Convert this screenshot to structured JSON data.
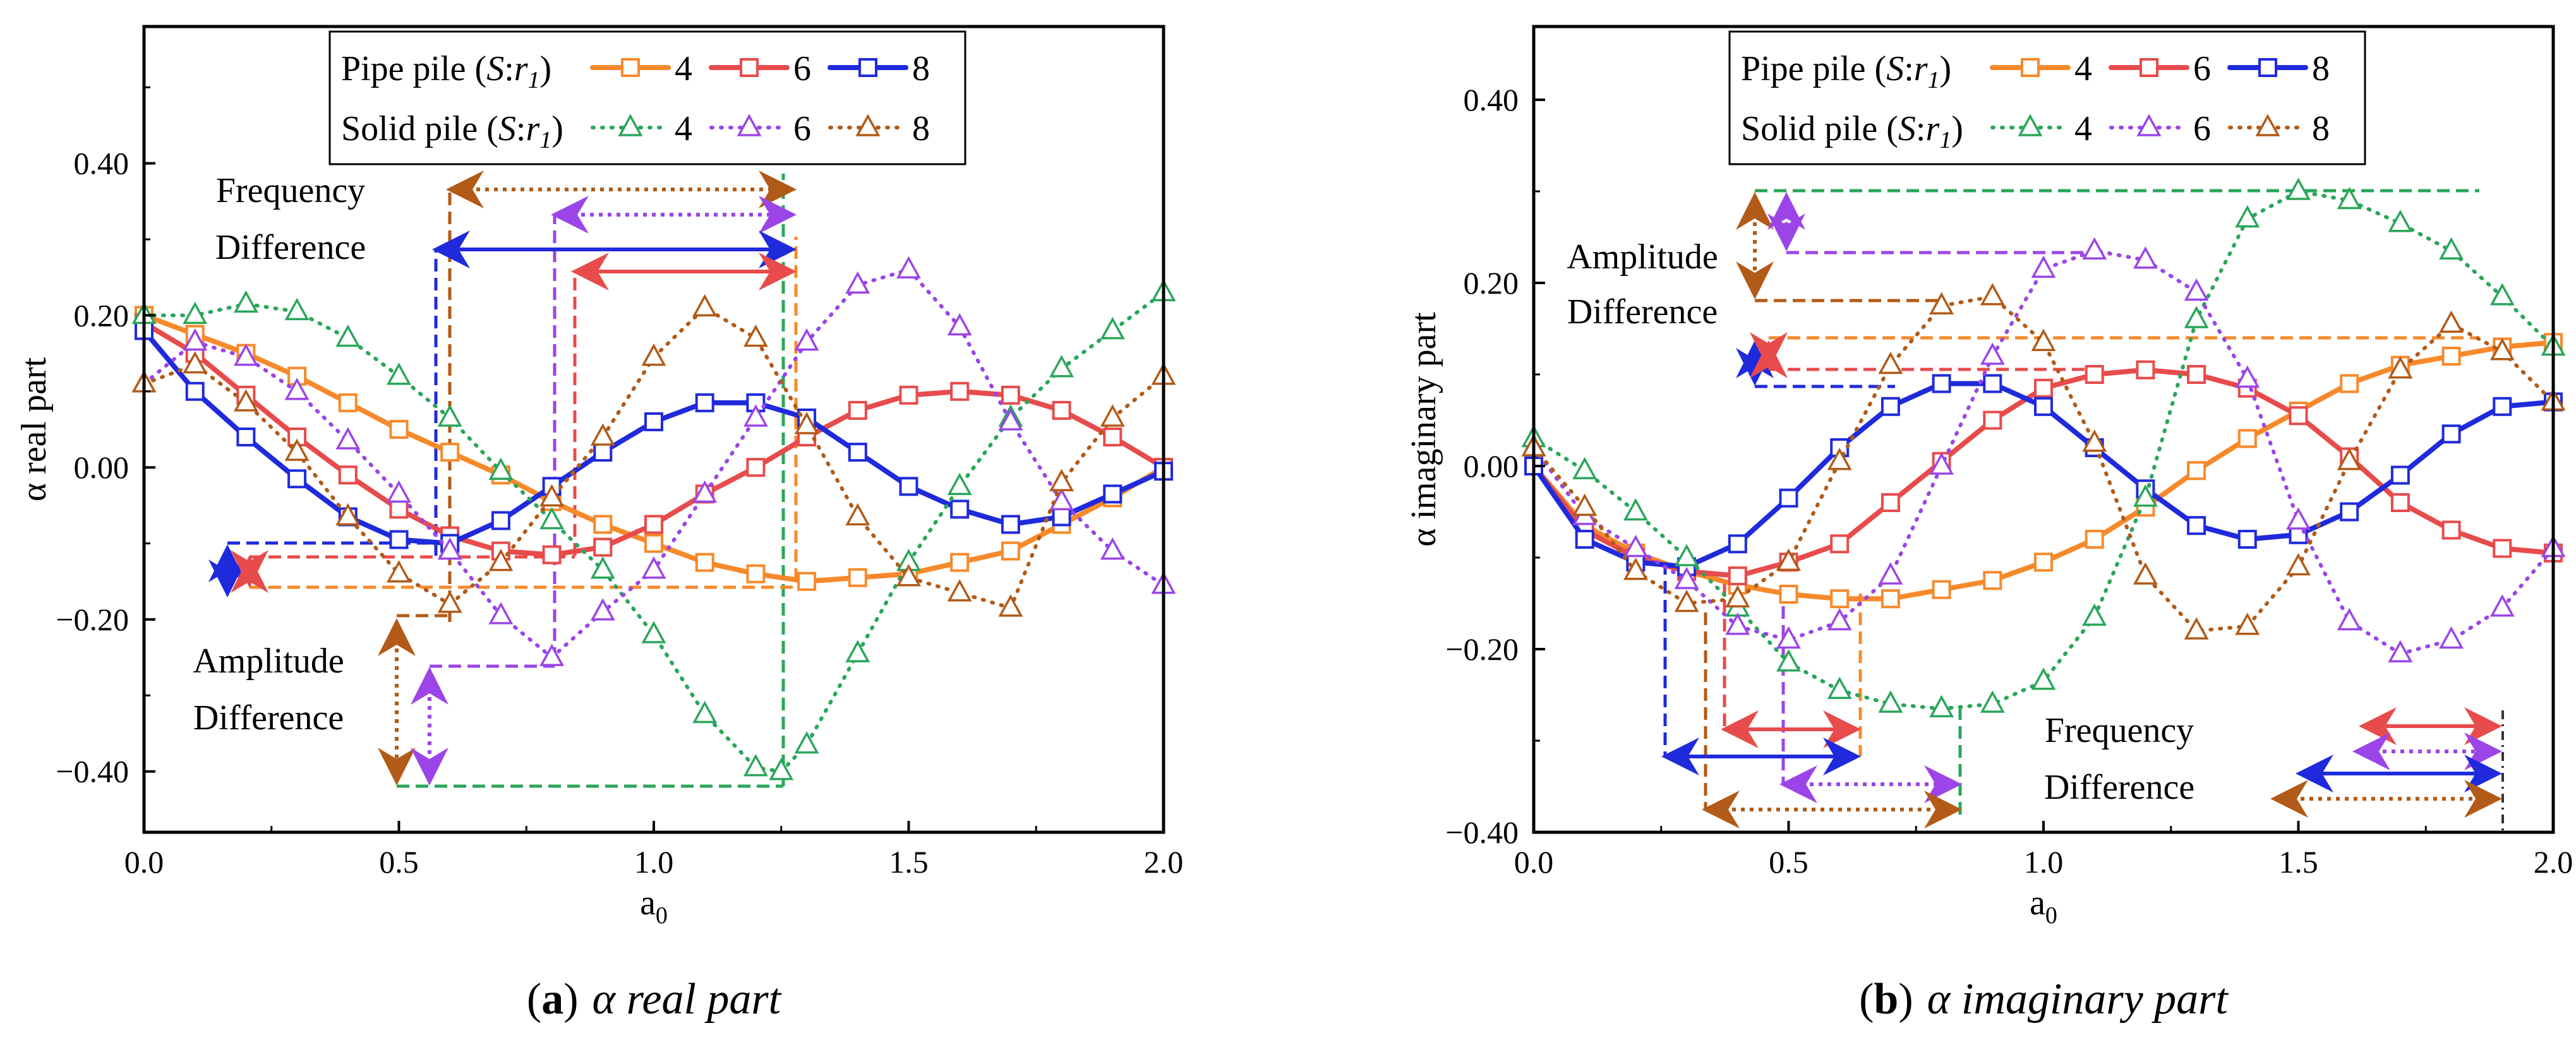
{
  "figure": {
    "legend": {
      "pipe_label": "Pipe  pile (",
      "solid_label": "Solid pile (",
      "ratio_S": "S",
      "ratio_colon": ":",
      "ratio_r": "r",
      "ratio_sub": "1",
      "ratio_close": ")",
      "entries": [
        "4",
        "6",
        "8"
      ]
    },
    "colors": {
      "pipe_4": "#f7892a",
      "pipe_6": "#e84b4b",
      "pipe_8": "#1f2adc",
      "solid_4": "#2aa65a",
      "solid_6": "#9b45e8",
      "solid_8": "#b25a17"
    },
    "annotations": {
      "freq_1": "Frequency",
      "freq_2": "Difference",
      "amp_1": "Amplitude",
      "amp_2": "Difference"
    }
  },
  "chart_data": [
    {
      "type": "line",
      "panel_label": "a",
      "title": "α  real part",
      "xlabel": "a",
      "xlabel_sub": "0",
      "ylabel": "α real part",
      "xlim": [
        0,
        2.0
      ],
      "ylim": [
        -0.48,
        0.58
      ],
      "xticks": [
        "0.0",
        "0.5",
        "1.0",
        "1.5",
        "2.0"
      ],
      "xtick_values": [
        0,
        0.5,
        1.0,
        1.5,
        2.0
      ],
      "yticks": [
        "−0.40",
        "−0.20",
        "0.00",
        "0.20",
        "0.40"
      ],
      "ytick_values": [
        -0.4,
        -0.2,
        0.0,
        0.2,
        0.4
      ],
      "series": [
        {
          "name": "Pipe pile 4",
          "key": "pipe_4",
          "marker": "square",
          "dash": "solid",
          "x": [
            0.0,
            0.1,
            0.2,
            0.3,
            0.4,
            0.5,
            0.6,
            0.7,
            0.8,
            0.9,
            1.0,
            1.1,
            1.2,
            1.3,
            1.4,
            1.5,
            1.6,
            1.7,
            1.8,
            1.9,
            2.0
          ],
          "y": [
            0.2,
            0.175,
            0.15,
            0.12,
            0.085,
            0.05,
            0.02,
            -0.01,
            -0.045,
            -0.075,
            -0.1,
            -0.125,
            -0.14,
            -0.15,
            -0.145,
            -0.14,
            -0.125,
            -0.11,
            -0.075,
            -0.04,
            0.0
          ]
        },
        {
          "name": "Pipe pile 6",
          "key": "pipe_6",
          "marker": "square",
          "dash": "solid",
          "x": [
            0.0,
            0.1,
            0.2,
            0.3,
            0.4,
            0.5,
            0.6,
            0.7,
            0.8,
            0.9,
            1.0,
            1.1,
            1.2,
            1.3,
            1.4,
            1.5,
            1.6,
            1.7,
            1.8,
            1.9,
            2.0
          ],
          "y": [
            0.19,
            0.15,
            0.095,
            0.04,
            -0.01,
            -0.055,
            -0.09,
            -0.11,
            -0.115,
            -0.105,
            -0.075,
            -0.035,
            0.0,
            0.04,
            0.075,
            0.095,
            0.1,
            0.095,
            0.075,
            0.04,
            0.0
          ]
        },
        {
          "name": "Pipe pile 8",
          "key": "pipe_8",
          "marker": "square",
          "dash": "solid",
          "x": [
            0.0,
            0.1,
            0.2,
            0.3,
            0.4,
            0.5,
            0.6,
            0.7,
            0.8,
            0.9,
            1.0,
            1.1,
            1.2,
            1.3,
            1.4,
            1.5,
            1.6,
            1.7,
            1.8,
            1.9,
            2.0
          ],
          "y": [
            0.18,
            0.1,
            0.04,
            -0.015,
            -0.065,
            -0.095,
            -0.1,
            -0.07,
            -0.025,
            0.02,
            0.06,
            0.085,
            0.085,
            0.065,
            0.02,
            -0.025,
            -0.055,
            -0.075,
            -0.065,
            -0.035,
            -0.005
          ]
        },
        {
          "name": "Solid pile 4",
          "key": "solid_4",
          "marker": "triangle",
          "dash": "dot",
          "x": [
            0.0,
            0.1,
            0.2,
            0.3,
            0.4,
            0.5,
            0.6,
            0.7,
            0.8,
            0.9,
            1.0,
            1.1,
            1.2,
            1.25,
            1.3,
            1.4,
            1.5,
            1.6,
            1.7,
            1.8,
            1.9,
            2.0
          ],
          "y": [
            0.2,
            0.2,
            0.215,
            0.205,
            0.17,
            0.12,
            0.065,
            -0.005,
            -0.07,
            -0.135,
            -0.22,
            -0.325,
            -0.395,
            -0.4,
            -0.365,
            -0.245,
            -0.125,
            -0.025,
            0.065,
            0.13,
            0.18,
            0.23
          ]
        },
        {
          "name": "Solid pile 6",
          "key": "solid_6",
          "marker": "triangle",
          "dash": "dot",
          "x": [
            0.0,
            0.1,
            0.2,
            0.3,
            0.4,
            0.5,
            0.6,
            0.7,
            0.8,
            0.9,
            1.0,
            1.1,
            1.2,
            1.3,
            1.4,
            1.5,
            1.6,
            1.7,
            1.8,
            1.9,
            2.0
          ],
          "y": [
            0.11,
            0.165,
            0.145,
            0.1,
            0.035,
            -0.035,
            -0.11,
            -0.195,
            -0.25,
            -0.19,
            -0.135,
            -0.035,
            0.065,
            0.165,
            0.24,
            0.26,
            0.185,
            0.06,
            -0.045,
            -0.11,
            -0.155
          ]
        },
        {
          "name": "Solid pile 8",
          "key": "solid_8",
          "marker": "triangle",
          "dash": "dot",
          "x": [
            0.0,
            0.1,
            0.2,
            0.3,
            0.4,
            0.5,
            0.6,
            0.7,
            0.8,
            0.9,
            1.0,
            1.1,
            1.2,
            1.3,
            1.4,
            1.5,
            1.6,
            1.7,
            1.8,
            1.9,
            2.0
          ],
          "y": [
            0.11,
            0.135,
            0.085,
            0.02,
            -0.065,
            -0.14,
            -0.18,
            -0.125,
            -0.04,
            0.04,
            0.145,
            0.21,
            0.17,
            0.055,
            -0.065,
            -0.145,
            -0.165,
            -0.185,
            -0.02,
            0.065,
            0.12
          ]
        }
      ]
    },
    {
      "type": "line",
      "panel_label": "b",
      "title": "α  imaginary part",
      "xlabel": "a",
      "xlabel_sub": "0",
      "ylabel": "α imaginary part",
      "xlim": [
        0,
        2.0
      ],
      "ylim": [
        -0.4,
        0.48
      ],
      "xticks": [
        "0.0",
        "0.5",
        "1.0",
        "1.5",
        "2.0"
      ],
      "xtick_values": [
        0,
        0.5,
        1.0,
        1.5,
        2.0
      ],
      "yticks": [
        "−0.40",
        "−0.20",
        "0.00",
        "0.20",
        "0.40"
      ],
      "ytick_values": [
        -0.4,
        -0.2,
        0.0,
        0.2,
        0.4
      ],
      "series": [
        {
          "name": "Pipe pile 4",
          "key": "pipe_4",
          "marker": "square",
          "dash": "solid",
          "x": [
            0.0,
            0.1,
            0.2,
            0.3,
            0.4,
            0.5,
            0.6,
            0.7,
            0.8,
            0.9,
            1.0,
            1.1,
            1.2,
            1.3,
            1.4,
            1.5,
            1.6,
            1.7,
            1.8,
            1.9,
            2.0
          ],
          "y": [
            0.0,
            -0.065,
            -0.095,
            -0.115,
            -0.13,
            -0.14,
            -0.145,
            -0.145,
            -0.135,
            -0.125,
            -0.105,
            -0.08,
            -0.045,
            -0.005,
            0.03,
            0.06,
            0.09,
            0.11,
            0.12,
            0.13,
            0.135
          ]
        },
        {
          "name": "Pipe pile 6",
          "key": "pipe_6",
          "marker": "square",
          "dash": "solid",
          "x": [
            0.0,
            0.1,
            0.2,
            0.3,
            0.4,
            0.5,
            0.6,
            0.7,
            0.8,
            0.9,
            1.0,
            1.1,
            1.2,
            1.3,
            1.4,
            1.5,
            1.6,
            1.7,
            1.8,
            1.9,
            2.0
          ],
          "y": [
            0.0,
            -0.07,
            -0.1,
            -0.115,
            -0.12,
            -0.105,
            -0.085,
            -0.04,
            0.005,
            0.05,
            0.085,
            0.1,
            0.105,
            0.1,
            0.085,
            0.055,
            0.01,
            -0.04,
            -0.07,
            -0.09,
            -0.095
          ]
        },
        {
          "name": "Pipe pile 8",
          "key": "pipe_8",
          "marker": "square",
          "dash": "solid",
          "x": [
            0.0,
            0.1,
            0.2,
            0.3,
            0.4,
            0.5,
            0.6,
            0.7,
            0.8,
            0.9,
            1.0,
            1.1,
            1.2,
            1.3,
            1.4,
            1.5,
            1.6,
            1.7,
            1.8,
            1.9,
            2.0
          ],
          "y": [
            0.0,
            -0.08,
            -0.105,
            -0.11,
            -0.085,
            -0.035,
            0.02,
            0.065,
            0.09,
            0.09,
            0.065,
            0.02,
            -0.025,
            -0.065,
            -0.08,
            -0.075,
            -0.05,
            -0.01,
            0.035,
            0.065,
            0.07
          ]
        },
        {
          "name": "Solid pile 4",
          "key": "solid_4",
          "marker": "triangle",
          "dash": "dot",
          "x": [
            0.0,
            0.1,
            0.2,
            0.3,
            0.4,
            0.5,
            0.6,
            0.7,
            0.8,
            0.9,
            1.0,
            1.1,
            1.2,
            1.3,
            1.4,
            1.5,
            1.6,
            1.7,
            1.8,
            1.9,
            2.0
          ],
          "y": [
            0.03,
            -0.005,
            -0.05,
            -0.1,
            -0.155,
            -0.215,
            -0.245,
            -0.26,
            -0.265,
            -0.26,
            -0.235,
            -0.165,
            -0.035,
            0.16,
            0.27,
            0.3,
            0.29,
            0.265,
            0.235,
            0.185,
            0.13
          ]
        },
        {
          "name": "Solid pile 6",
          "key": "solid_6",
          "marker": "triangle",
          "dash": "dot",
          "x": [
            0.0,
            0.1,
            0.2,
            0.3,
            0.4,
            0.5,
            0.6,
            0.7,
            0.8,
            0.9,
            1.0,
            1.1,
            1.2,
            1.3,
            1.4,
            1.5,
            1.6,
            1.7,
            1.8,
            1.9,
            2.0
          ],
          "y": [
            0.02,
            -0.055,
            -0.09,
            -0.125,
            -0.175,
            -0.19,
            -0.17,
            -0.12,
            0.0,
            0.12,
            0.215,
            0.235,
            0.225,
            0.19,
            0.095,
            -0.06,
            -0.17,
            -0.205,
            -0.19,
            -0.155,
            -0.09
          ]
        },
        {
          "name": "Solid pile 8",
          "key": "solid_8",
          "marker": "triangle",
          "dash": "dot",
          "x": [
            0.0,
            0.1,
            0.2,
            0.3,
            0.4,
            0.5,
            0.6,
            0.7,
            0.8,
            0.9,
            1.0,
            1.1,
            1.2,
            1.3,
            1.4,
            1.5,
            1.6,
            1.7,
            1.8,
            1.9,
            2.0
          ],
          "y": [
            0.02,
            -0.045,
            -0.115,
            -0.15,
            -0.145,
            -0.105,
            0.005,
            0.11,
            0.175,
            0.185,
            0.135,
            0.025,
            -0.12,
            -0.18,
            -0.175,
            -0.11,
            0.005,
            0.105,
            0.155,
            0.125,
            0.07
          ]
        }
      ]
    }
  ]
}
